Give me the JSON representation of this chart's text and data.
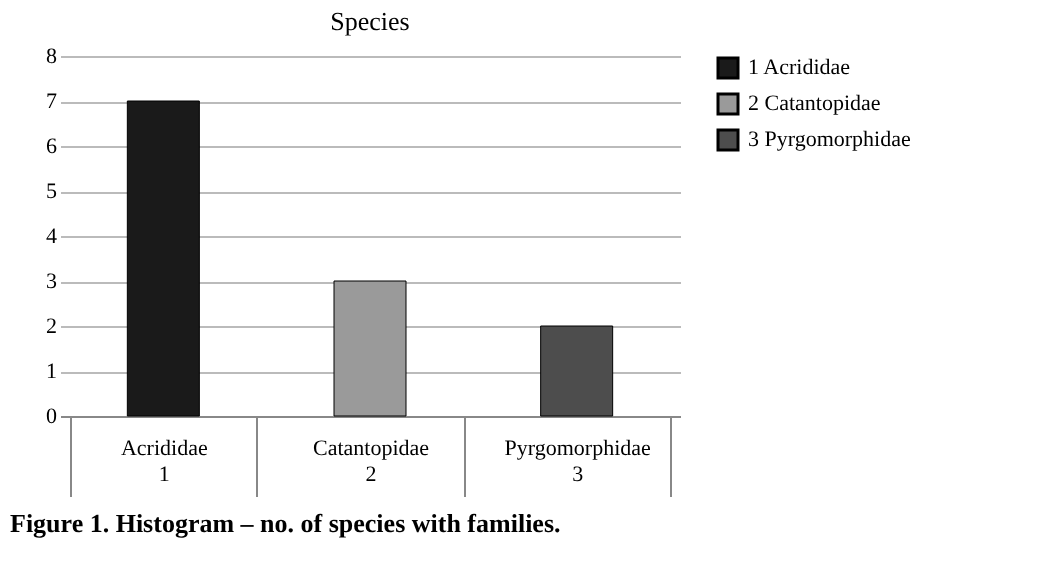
{
  "chart_data": {
    "type": "bar",
    "title": "Species",
    "categories": [
      "Acrididae\n1",
      "Catantopidae\n2",
      "Pyrgomorphidae\n3"
    ],
    "series": [
      {
        "name": "1 Acrididae",
        "color": "#1a1a1a",
        "values": [
          7,
          null,
          null
        ]
      },
      {
        "name": "2 Catantopidae",
        "color": "#9a9a9a",
        "values": [
          null,
          3,
          null
        ]
      },
      {
        "name": "3 Pyrgomorphidae",
        "color": "#4d4d4d",
        "values": [
          null,
          null,
          2
        ]
      }
    ],
    "ylim": [
      0,
      8
    ],
    "yticks": [
      0,
      1,
      2,
      3,
      4,
      5,
      6,
      7,
      8
    ],
    "grid": "y",
    "legend": "right",
    "annotations": [
      "Figure 1. Histogram – no. of species with families."
    ]
  }
}
